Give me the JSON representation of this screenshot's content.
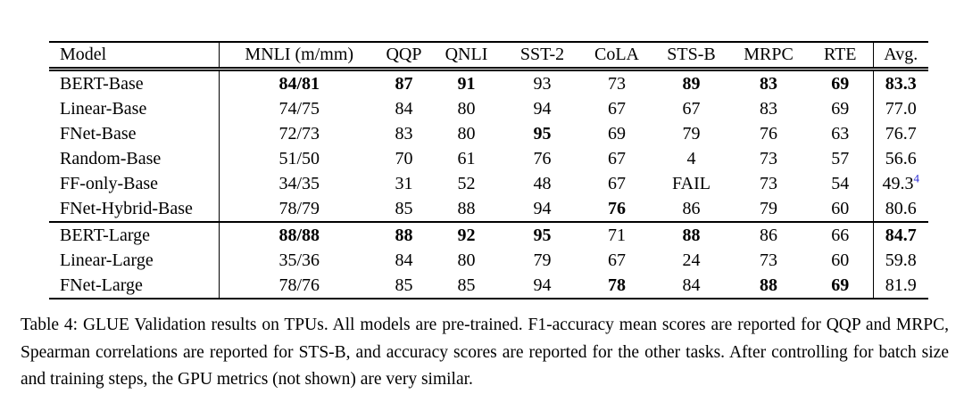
{
  "table": {
    "columns": [
      "Model",
      "MNLI (m/mm)",
      "QQP",
      "QNLI",
      "SST-2",
      "CoLA",
      "STS-B",
      "MRPC",
      "RTE",
      "Avg."
    ],
    "rows": [
      {
        "model": "BERT-Base",
        "cells": [
          {
            "t": "84/81",
            "b": true
          },
          {
            "t": "87",
            "b": true
          },
          {
            "t": "91",
            "b": true
          },
          {
            "t": "93",
            "b": false
          },
          {
            "t": "73",
            "b": false
          },
          {
            "t": "89",
            "b": true
          },
          {
            "t": "83",
            "b": true
          },
          {
            "t": "69",
            "b": true
          },
          {
            "t": "83.3",
            "b": true
          }
        ],
        "group_start": false
      },
      {
        "model": "Linear-Base",
        "cells": [
          {
            "t": "74/75",
            "b": false
          },
          {
            "t": "84",
            "b": false
          },
          {
            "t": "80",
            "b": false
          },
          {
            "t": "94",
            "b": false
          },
          {
            "t": "67",
            "b": false
          },
          {
            "t": "67",
            "b": false
          },
          {
            "t": "83",
            "b": false
          },
          {
            "t": "69",
            "b": false
          },
          {
            "t": "77.0",
            "b": false
          }
        ],
        "group_start": false
      },
      {
        "model": "FNet-Base",
        "cells": [
          {
            "t": "72/73",
            "b": false
          },
          {
            "t": "83",
            "b": false
          },
          {
            "t": "80",
            "b": false
          },
          {
            "t": "95",
            "b": true
          },
          {
            "t": "69",
            "b": false
          },
          {
            "t": "79",
            "b": false
          },
          {
            "t": "76",
            "b": false
          },
          {
            "t": "63",
            "b": false
          },
          {
            "t": "76.7",
            "b": false
          }
        ],
        "group_start": false
      },
      {
        "model": "Random-Base",
        "cells": [
          {
            "t": "51/50",
            "b": false
          },
          {
            "t": "70",
            "b": false
          },
          {
            "t": "61",
            "b": false
          },
          {
            "t": "76",
            "b": false
          },
          {
            "t": "67",
            "b": false
          },
          {
            "t": "4",
            "b": false
          },
          {
            "t": "73",
            "b": false
          },
          {
            "t": "57",
            "b": false
          },
          {
            "t": "56.6",
            "b": false
          }
        ],
        "group_start": false
      },
      {
        "model": "FF-only-Base",
        "cells": [
          {
            "t": "34/35",
            "b": false
          },
          {
            "t": "31",
            "b": false
          },
          {
            "t": "52",
            "b": false
          },
          {
            "t": "48",
            "b": false
          },
          {
            "t": "67",
            "b": false
          },
          {
            "t": "FAIL",
            "b": false
          },
          {
            "t": "73",
            "b": false
          },
          {
            "t": "54",
            "b": false
          },
          {
            "t": "49.3",
            "b": false,
            "sup": "4"
          }
        ],
        "group_start": false
      },
      {
        "model": "FNet-Hybrid-Base",
        "cells": [
          {
            "t": "78/79",
            "b": false
          },
          {
            "t": "85",
            "b": false
          },
          {
            "t": "88",
            "b": false
          },
          {
            "t": "94",
            "b": false
          },
          {
            "t": "76",
            "b": true
          },
          {
            "t": "86",
            "b": false
          },
          {
            "t": "79",
            "b": false
          },
          {
            "t": "60",
            "b": false
          },
          {
            "t": "80.6",
            "b": false
          }
        ],
        "group_start": false
      },
      {
        "model": "BERT-Large",
        "cells": [
          {
            "t": "88/88",
            "b": true
          },
          {
            "t": "88",
            "b": true
          },
          {
            "t": "92",
            "b": true
          },
          {
            "t": "95",
            "b": true
          },
          {
            "t": "71",
            "b": false
          },
          {
            "t": "88",
            "b": true
          },
          {
            "t": "86",
            "b": false
          },
          {
            "t": "66",
            "b": false
          },
          {
            "t": "84.7",
            "b": true
          }
        ],
        "group_start": true
      },
      {
        "model": "Linear-Large",
        "cells": [
          {
            "t": "35/36",
            "b": false
          },
          {
            "t": "84",
            "b": false
          },
          {
            "t": "80",
            "b": false
          },
          {
            "t": "79",
            "b": false
          },
          {
            "t": "67",
            "b": false
          },
          {
            "t": "24",
            "b": false
          },
          {
            "t": "73",
            "b": false
          },
          {
            "t": "60",
            "b": false
          },
          {
            "t": "59.8",
            "b": false
          }
        ],
        "group_start": false
      },
      {
        "model": "FNet-Large",
        "cells": [
          {
            "t": "78/76",
            "b": false
          },
          {
            "t": "85",
            "b": false
          },
          {
            "t": "85",
            "b": false
          },
          {
            "t": "94",
            "b": false
          },
          {
            "t": "78",
            "b": true
          },
          {
            "t": "84",
            "b": false
          },
          {
            "t": "88",
            "b": true
          },
          {
            "t": "69",
            "b": true
          },
          {
            "t": "81.9",
            "b": false
          }
        ],
        "group_start": false
      }
    ]
  },
  "caption": {
    "text": "Table 4: GLUE Validation results on TPUs. All models are pre-trained. F1-accuracy mean scores are reported for QQP and MRPC, Spearman correlations are reported for STS-B, and accuracy scores are reported for the other tasks. After controlling for batch size and training steps, the GPU metrics (not shown) are very similar."
  },
  "colors": {
    "footnote_link": "#2b2bd5"
  }
}
